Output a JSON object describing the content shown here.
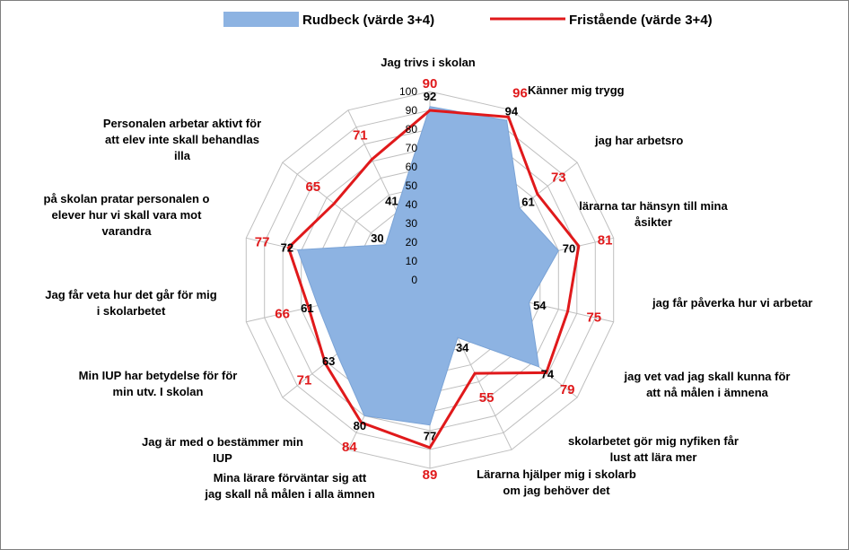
{
  "chart_data": {
    "type": "radar",
    "title": "",
    "rmax": 100,
    "ticks": [
      0,
      10,
      20,
      30,
      40,
      50,
      60,
      70,
      80,
      90,
      100
    ],
    "legend_position": "top",
    "colors": {
      "fill": "#8db3e2",
      "fill_stroke": "#7aa3d6",
      "line": "#e0191b",
      "grid": "#bfbfbf"
    },
    "categories": [
      [
        "Jag trivs i skolan"
      ],
      [
        "Känner mig trygg"
      ],
      [
        "jag har arbetsro"
      ],
      [
        "lärarna tar hänsyn till mina",
        "åsikter"
      ],
      [
        "jag får påverka hur vi arbetar"
      ],
      [
        "jag vet vad jag skall kunna för",
        "att nå målen i ämnena"
      ],
      [
        "skolarbetet gör mig nyfiken får",
        "lust att lära mer"
      ],
      [
        "Lärarna hjälper mig i skolarb",
        "om jag behöver det"
      ],
      [
        "Mina lärare förväntar sig att",
        "jag skall nå målen i alla ämnen"
      ],
      [
        "Jag är med o bestämmer min",
        "IUP"
      ],
      [
        "Min IUP har betydelse för för",
        "min utv. I skolan"
      ],
      [
        "Jag får veta hur det går för mig",
        "i skolarbetet"
      ],
      [
        "på skolan pratar personalen o",
        "elever hur vi skall vara mot",
        "varandra"
      ],
      [
        "Personalen arbetar aktivt för",
        "att elev inte skall behandlas",
        "illa"
      ]
    ],
    "series": [
      {
        "name": "Rudbeck (värde 3+4)",
        "type": "area",
        "values": [
          92,
          94,
          61,
          70,
          54,
          74,
          34,
          77,
          80,
          63,
          61,
          72,
          30,
          41
        ]
      },
      {
        "name": "Fristående (värde 3+4)",
        "type": "line",
        "values": [
          90,
          96,
          73,
          81,
          75,
          79,
          55,
          89,
          84,
          71,
          66,
          77,
          65,
          71
        ]
      }
    ]
  }
}
